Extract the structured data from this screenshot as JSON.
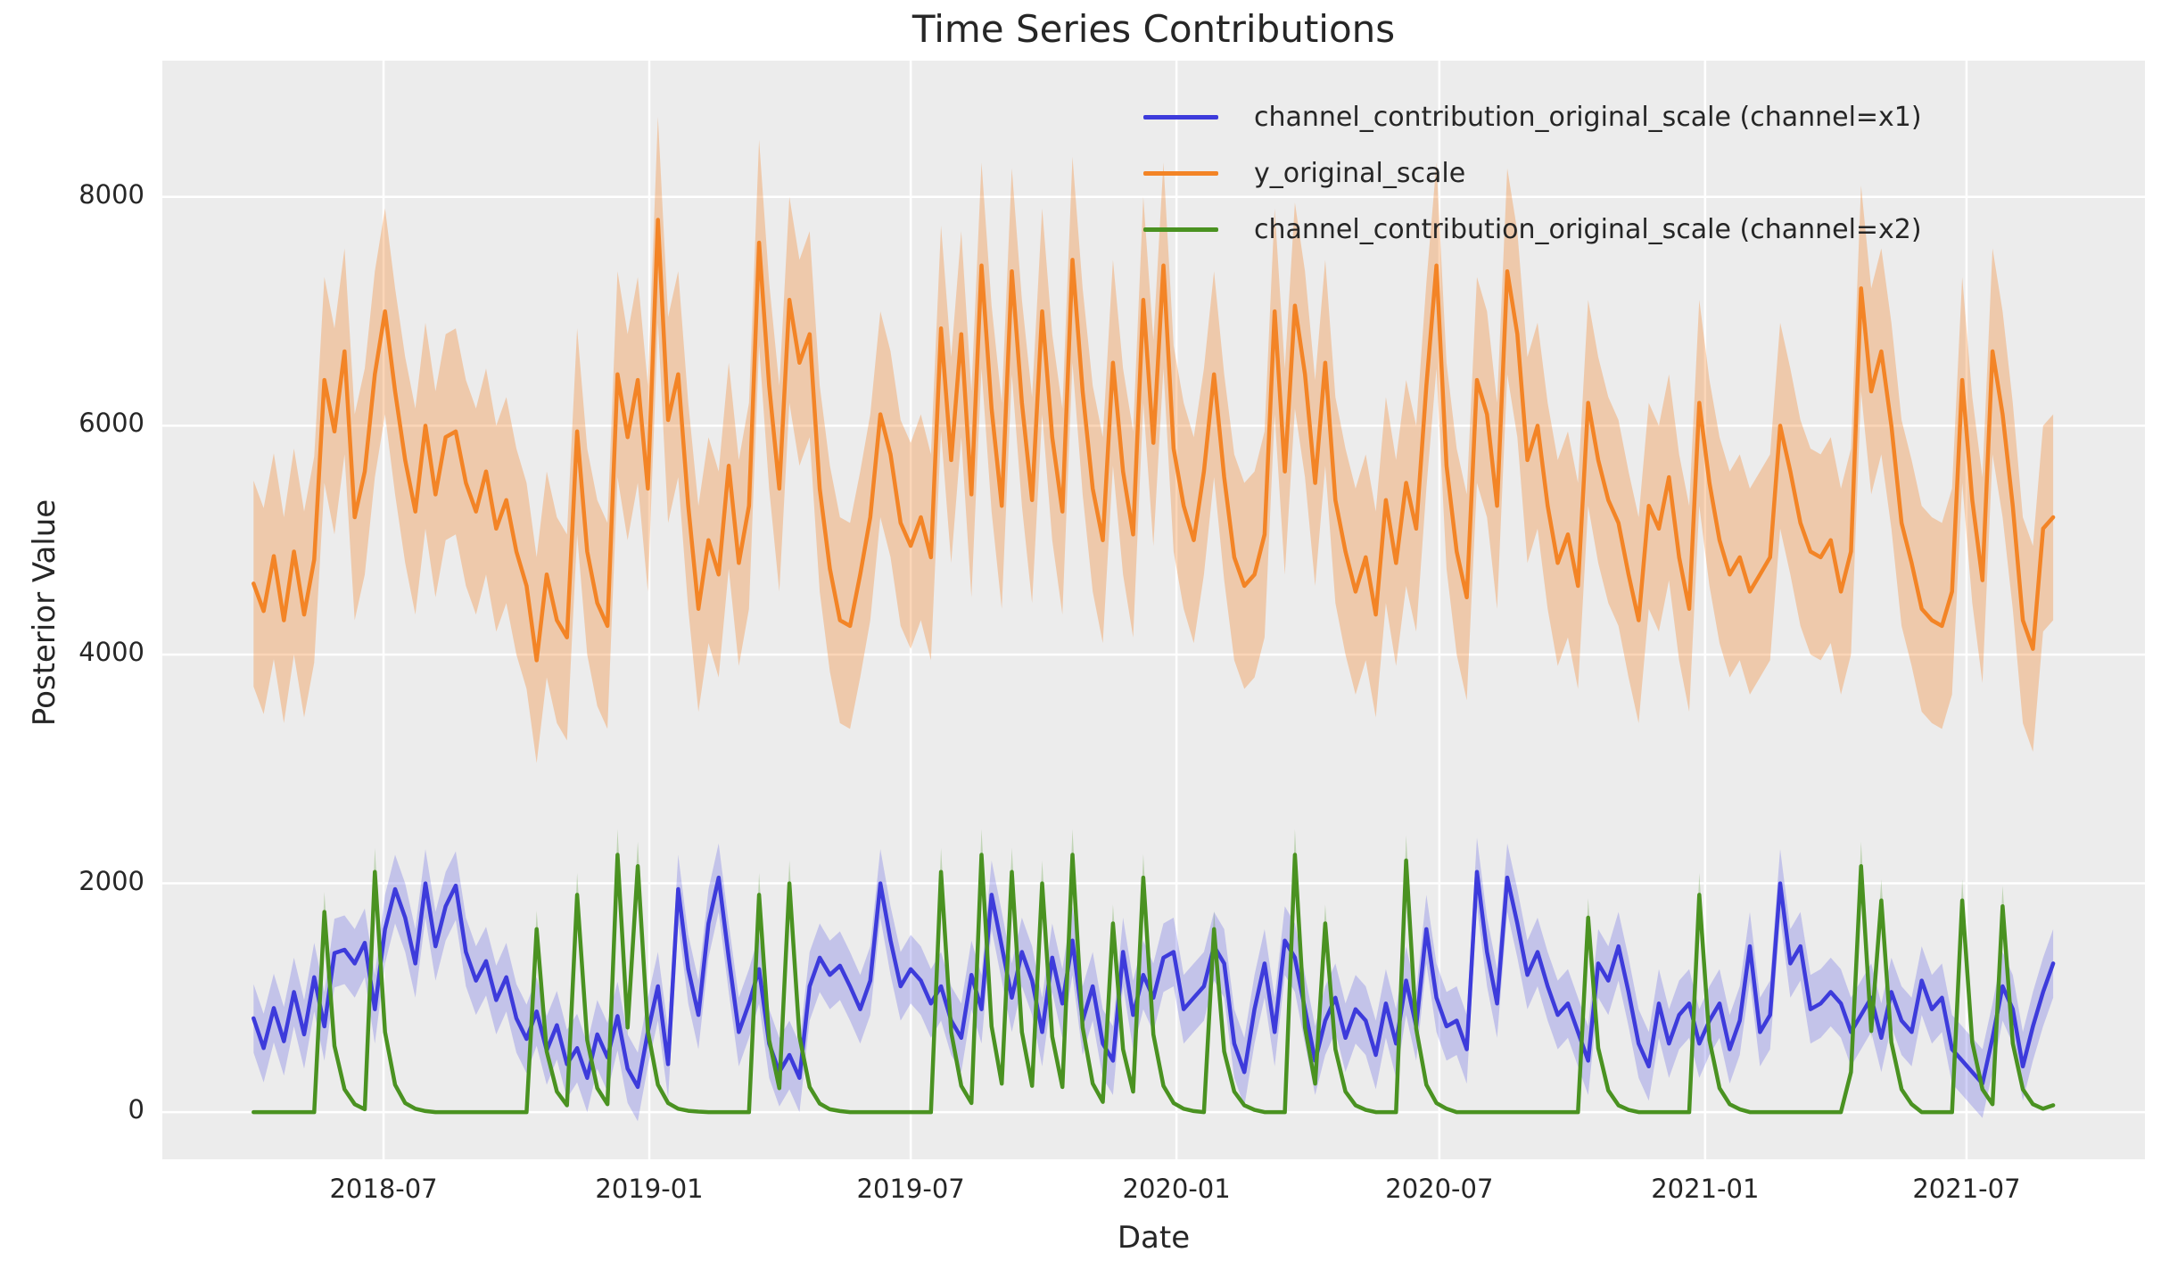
{
  "title": "Time Series Contributions",
  "chart_data": {
    "type": "line",
    "title": "Time Series Contributions",
    "xlabel": "Date",
    "ylabel": "Posterior Value",
    "x_start": "2018-04-02",
    "x_step_days": 7,
    "n_points": 179,
    "xtick_labels": [
      "2018-07",
      "2019-01",
      "2019-07",
      "2020-01",
      "2020-07",
      "2021-01",
      "2021-07"
    ],
    "ytick_values": [
      0,
      2000,
      4000,
      6000,
      8000
    ],
    "ytick_labels": [
      "0",
      "2000",
      "4000",
      "6000",
      "8000"
    ],
    "ylim": [
      -412,
      9191
    ],
    "grid": true,
    "grid_color": "#ffffff",
    "background_color": "#ececec",
    "text_color": "#262626",
    "legend_position": "upper right",
    "series": [
      {
        "name": "channel_contribution_original_scale (channel=x1)",
        "color": "#3d3bdb",
        "band_color": "rgba(90,90,225,0.28)",
        "band_halfwidth": 300,
        "values": [
          820,
          560,
          910,
          620,
          1050,
          680,
          1180,
          750,
          1390,
          1420,
          1300,
          1480,
          900,
          1600,
          1950,
          1700,
          1300,
          2000,
          1450,
          1800,
          1980,
          1400,
          1150,
          1320,
          980,
          1180,
          820,
          640,
          880,
          540,
          760,
          420,
          560,
          300,
          680,
          480,
          840,
          380,
          220,
          700,
          1100,
          420,
          1950,
          1250,
          850,
          1650,
          2050,
          1350,
          700,
          950,
          1250,
          600,
          350,
          500,
          300,
          1100,
          1350,
          1200,
          1280,
          1100,
          900,
          1150,
          2000,
          1500,
          1100,
          1250,
          1150,
          950,
          1100,
          800,
          650,
          1200,
          900,
          1900,
          1450,
          1000,
          1400,
          1150,
          700,
          1350,
          950,
          1500,
          800,
          1100,
          600,
          450,
          1400,
          850,
          1200,
          1000,
          1350,
          1400,
          900,
          1000,
          1100,
          1450,
          1300,
          600,
          350,
          900,
          1300,
          700,
          1500,
          1350,
          900,
          450,
          800,
          1000,
          650,
          900,
          800,
          500,
          950,
          600,
          1150,
          750,
          1600,
          1000,
          750,
          800,
          550,
          2100,
          1400,
          950,
          2050,
          1650,
          1200,
          1400,
          1100,
          850,
          950,
          700,
          450,
          1300,
          1150,
          1450,
          1050,
          600,
          400,
          950,
          600,
          850,
          950,
          600,
          800,
          950,
          550,
          800,
          1450,
          700,
          850,
          2000,
          1300,
          1450,
          900,
          950,
          1050,
          950,
          700,
          850,
          1000,
          650,
          1050,
          800,
          700,
          1150,
          900,
          1000,
          550,
          450,
          350,
          250,
          650,
          1100,
          900,
          400,
          750,
          1050,
          1300
        ]
      },
      {
        "name": "y_original_scale",
        "color": "#f38426",
        "band_color": "rgba(243,132,38,0.33)",
        "band_halfwidth": 900,
        "values": [
          4620,
          4380,
          4860,
          4300,
          4900,
          4350,
          4830,
          6400,
          5950,
          6650,
          5200,
          5600,
          6450,
          7000,
          6300,
          5700,
          5250,
          6000,
          5400,
          5900,
          5950,
          5500,
          5250,
          5600,
          5100,
          5350,
          4900,
          4600,
          3950,
          4700,
          4300,
          4150,
          5950,
          4900,
          4450,
          4250,
          6450,
          5900,
          6400,
          5450,
          7800,
          6050,
          6450,
          5300,
          4400,
          5000,
          4700,
          5650,
          4800,
          5300,
          7600,
          6350,
          5450,
          7100,
          6550,
          6800,
          5450,
          4750,
          4300,
          4250,
          4700,
          5200,
          6100,
          5750,
          5150,
          4950,
          5200,
          4850,
          6850,
          5700,
          6800,
          5400,
          7400,
          6150,
          5300,
          7350,
          6200,
          5350,
          7000,
          5900,
          5250,
          7450,
          6300,
          5450,
          5000,
          6550,
          5600,
          5050,
          7100,
          5850,
          7400,
          5800,
          5300,
          5000,
          5600,
          6450,
          5550,
          4850,
          4600,
          4700,
          5050,
          7000,
          5600,
          7050,
          6450,
          5500,
          6550,
          5350,
          4900,
          4550,
          4850,
          4350,
          5350,
          4800,
          5500,
          5100,
          6350,
          7400,
          5650,
          4900,
          4500,
          6400,
          6100,
          5300,
          7350,
          6800,
          5700,
          6000,
          5300,
          4800,
          5050,
          4600,
          6200,
          5700,
          5350,
          5150,
          4700,
          4300,
          5300,
          5100,
          5550,
          4850,
          4400,
          6200,
          5500,
          5000,
          4700,
          4850,
          4550,
          4700,
          4850,
          6000,
          5600,
          5150,
          4900,
          4850,
          5000,
          4550,
          4900,
          7200,
          6300,
          6650,
          6000,
          5150,
          4800,
          4400,
          4300,
          4250,
          4550,
          6400,
          5350,
          4650,
          6650,
          6100,
          5300,
          4300,
          4050,
          5100,
          5200
        ]
      },
      {
        "name": "channel_contribution_original_scale (channel=x2)",
        "color": "#4a9221",
        "band_color": "rgba(74,146,33,0.27)",
        "band_halfwidth_fraction": 0.1,
        "band_halfwidth_min": 8,
        "values": [
          0,
          0,
          0,
          0,
          0,
          0,
          0,
          1750,
          580,
          200,
          70,
          25,
          2100,
          700,
          240,
          80,
          30,
          10,
          0,
          0,
          0,
          0,
          0,
          0,
          0,
          0,
          0,
          0,
          1600,
          530,
          180,
          60,
          1900,
          630,
          210,
          70,
          2250,
          740,
          2150,
          710,
          240,
          80,
          30,
          12,
          5,
          0,
          0,
          0,
          0,
          0,
          1900,
          630,
          210,
          2000,
          660,
          220,
          75,
          25,
          10,
          0,
          0,
          0,
          0,
          0,
          0,
          0,
          0,
          0,
          2100,
          700,
          230,
          80,
          2250,
          750,
          250,
          2100,
          700,
          230,
          2000,
          660,
          220,
          2250,
          740,
          250,
          90,
          1650,
          550,
          180,
          2050,
          680,
          230,
          80,
          30,
          10,
          0,
          1600,
          530,
          180,
          60,
          20,
          0,
          0,
          0,
          2250,
          740,
          250,
          1650,
          550,
          180,
          60,
          20,
          0,
          0,
          0,
          2200,
          730,
          240,
          80,
          30,
          0,
          0,
          0,
          0,
          0,
          0,
          0,
          0,
          0,
          0,
          0,
          0,
          0,
          1700,
          560,
          190,
          60,
          20,
          0,
          0,
          0,
          0,
          0,
          0,
          1900,
          630,
          210,
          70,
          25,
          0,
          0,
          0,
          0,
          0,
          0,
          0,
          0,
          0,
          0,
          350,
          2150,
          710,
          1850,
          610,
          200,
          70,
          0,
          0,
          0,
          0,
          1850,
          610,
          200,
          70,
          1800,
          600,
          200,
          70,
          30,
          60
        ]
      }
    ]
  }
}
